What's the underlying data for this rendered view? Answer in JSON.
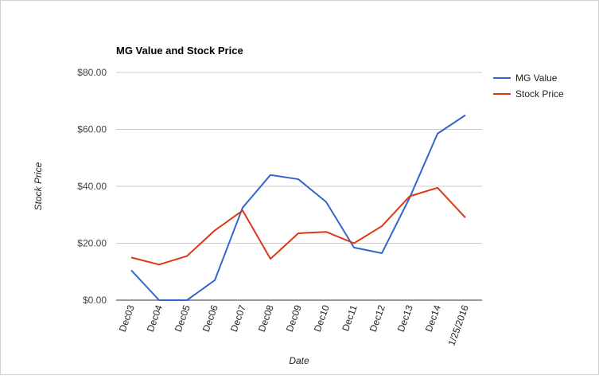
{
  "chart_data": {
    "type": "line",
    "title": "MG Value and Stock Price",
    "xlabel": "Date",
    "ylabel": "Stock Price",
    "categories": [
      "Dec03",
      "Dec04",
      "Dec05",
      "Dec06",
      "Dec07",
      "Dec08",
      "Dec09",
      "Dec10",
      "Dec11",
      "Dec12",
      "Dec13",
      "Dec14",
      "1/25/2016"
    ],
    "series": [
      {
        "name": "MG Value",
        "color": "#3366cc",
        "values": [
          10.5,
          0,
          0,
          7,
          32.5,
          44,
          42.5,
          34.5,
          18.5,
          16.5,
          36,
          58.5,
          65
        ]
      },
      {
        "name": "Stock Price",
        "color": "#dc3912",
        "values": [
          15,
          12.5,
          15.5,
          24.5,
          31.5,
          14.5,
          23.5,
          24,
          20,
          26,
          36.5,
          39.5,
          29
        ]
      }
    ],
    "ylim": [
      0,
      80
    ],
    "yticks": [
      0,
      20,
      40,
      60,
      80
    ],
    "ytick_labels": [
      "$0.00",
      "$20.00",
      "$40.00",
      "$60.00",
      "$80.00"
    ],
    "grid": true,
    "legend": "right"
  }
}
